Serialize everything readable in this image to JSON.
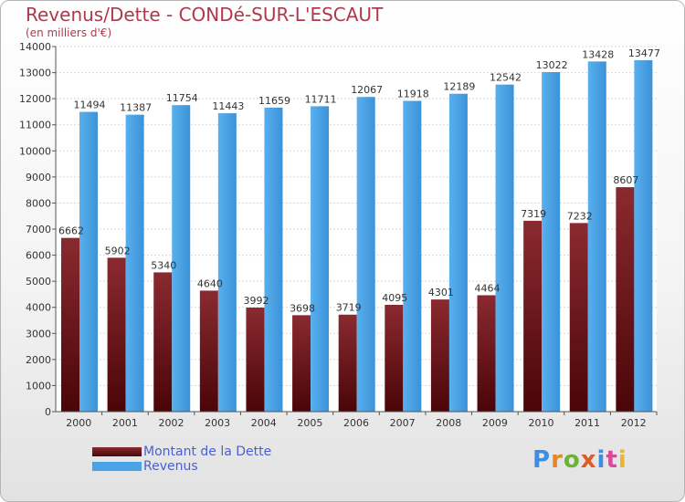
{
  "header": {
    "title": "Revenus/Dette - CONDé-SUR-L'ESCAUT",
    "subtitle": "(en milliers d'€)"
  },
  "chart_data": {
    "type": "bar",
    "title": "Revenus/Dette - CONDé-SUR-L'ESCAUT",
    "subtitle": "(en milliers d'€)",
    "categories": [
      "2000",
      "2001",
      "2002",
      "2003",
      "2004",
      "2005",
      "2006",
      "2007",
      "2008",
      "2009",
      "2010",
      "2011",
      "2012"
    ],
    "series": [
      {
        "name": "Montant de la Dette",
        "color": "#7a1c22",
        "values": [
          6662,
          5902,
          5340,
          4640,
          3992,
          3698,
          3719,
          4095,
          4301,
          4464,
          7319,
          7232,
          8607
        ],
        "labels": [
          "6662",
          "5902",
          "5340",
          "4640",
          "3992",
          "3698",
          "3719",
          "4095",
          "4301",
          "4464",
          "7319",
          "7232",
          "8607"
        ]
      },
      {
        "name": "Revenus",
        "color": "#4aa3e6",
        "values": [
          11494,
          11387,
          11754,
          11443,
          11659,
          11711,
          12067,
          11918,
          12189,
          12542,
          13022,
          13428,
          13477
        ],
        "labels": [
          "11494",
          "11387",
          "11754",
          "11443",
          "11659",
          "11711",
          "12067",
          "11918",
          "12189",
          "12542",
          "13022",
          "13428",
          "13477"
        ]
      }
    ],
    "ylim": [
      0,
      14000
    ],
    "yticks": [
      0,
      1000,
      2000,
      3000,
      4000,
      5000,
      6000,
      7000,
      8000,
      9000,
      10000,
      11000,
      12000,
      13000,
      14000
    ],
    "ytick_labels": [
      "0",
      "1000",
      "2000",
      "3000",
      "4000",
      "5000",
      "6000",
      "7000",
      "8000",
      "9000",
      "10000",
      "11000",
      "12000",
      "13000",
      "14000"
    ],
    "grid": true,
    "legend": "bottom-left"
  },
  "legend": {
    "items": [
      {
        "label": "Montant de la Dette",
        "color": "#7a1c22"
      },
      {
        "label": "Revenus",
        "color": "#4aa3e6"
      }
    ]
  },
  "branding": {
    "logo_chars": [
      "P",
      "r",
      "o",
      "x",
      "i",
      "t",
      "i"
    ]
  }
}
